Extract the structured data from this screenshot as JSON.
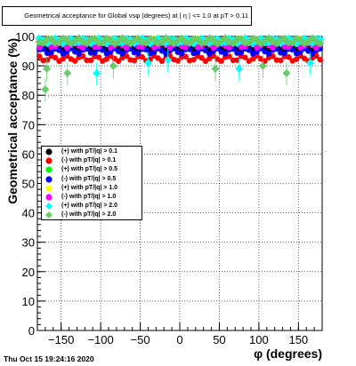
{
  "chart_data": {
    "type": "scatter",
    "title": "Geometrical acceptance for Global vsφ (degrees) at | η | <= 1.0 at pT > 0.11",
    "xlabel": "φ (degrees)",
    "ylabel": "Geometrical acceptance (%)",
    "xlim": [
      -180,
      180
    ],
    "ylim": [
      0,
      100
    ],
    "x_ticks": [
      -150,
      -100,
      -50,
      0,
      50,
      100,
      150
    ],
    "y_ticks": [
      0,
      10,
      20,
      30,
      40,
      50,
      60,
      70,
      80,
      90,
      100
    ],
    "grid": true,
    "legend_position": "middle-left",
    "series": [
      {
        "name": "(+) with pT/|q| > 0.1",
        "color": "#000000",
        "marker": "circle",
        "level": 96
      },
      {
        "name": "(-) with pT/|q| > 0.1",
        "color": "#ff0000",
        "marker": "circle",
        "level": 92.5
      },
      {
        "name": "(+) with pT/|q| > 0.5",
        "color": "#00ff00",
        "marker": "circle",
        "level": 98
      },
      {
        "name": "(-) with pT/|q| > 0.5",
        "color": "#0000ff",
        "marker": "circle",
        "level": 95
      },
      {
        "name": "(+) with pT/|q| > 1.0",
        "color": "#ffff00",
        "marker": "circle",
        "level": 98.5
      },
      {
        "name": "(-) with pT/|q| > 1.0",
        "color": "#ff00ff",
        "marker": "circle",
        "level": 97
      },
      {
        "name": "(+) with pT/|q| > 2.0",
        "color": "#00ffff",
        "marker": "diamond",
        "level": 98.5
      },
      {
        "name": "(-) with pT/|q| > 2.0",
        "color": "#66cc66",
        "marker": "diamond",
        "level": 98.5
      }
    ],
    "dips": [
      {
        "x": -170,
        "y": 82,
        "series": 7
      },
      {
        "x": -168,
        "y": 89,
        "series": 7
      },
      {
        "x": -142,
        "y": 87.5,
        "series": 7
      },
      {
        "x": -105,
        "y": 87.5,
        "series": 6
      },
      {
        "x": -84,
        "y": 90,
        "series": 7
      },
      {
        "x": -40,
        "y": 91,
        "series": 6
      },
      {
        "x": -15,
        "y": 92,
        "series": 6
      },
      {
        "x": 45,
        "y": 89,
        "series": 7
      },
      {
        "x": 75,
        "y": 89,
        "series": 6
      },
      {
        "x": 105,
        "y": 90,
        "series": 7
      },
      {
        "x": 135,
        "y": 87.5,
        "series": 7
      },
      {
        "x": 165,
        "y": 91,
        "series": 6
      }
    ]
  },
  "footer_timestamp": "Thu Oct 15 19:24:16 2020"
}
